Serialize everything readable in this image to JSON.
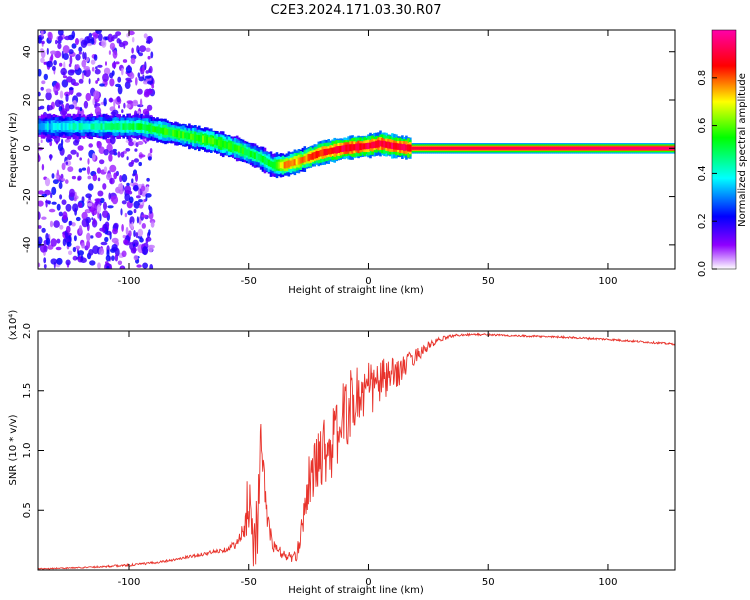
{
  "title": "C2E3.2024.171.03.30.R07",
  "chart_data": [
    {
      "type": "heatmap",
      "xlabel": "Height of straight line (km)",
      "ylabel": "Frequency (Hz)",
      "xlim": [
        -138,
        128
      ],
      "ylim": [
        -50,
        49
      ],
      "x_ticks": [
        -100,
        -50,
        0,
        50,
        100
      ],
      "y_ticks": [
        -40,
        -20,
        0,
        20,
        40
      ],
      "grid": false,
      "colorbar": {
        "label": "Normalized spectral amplitude",
        "range": [
          0,
          1
        ],
        "ticks": [
          0.0,
          0.2,
          0.4,
          0.6,
          0.8
        ],
        "colors": [
          "#ffffff",
          "#8f00ff",
          "#0000ff",
          "#00ffff",
          "#00ff00",
          "#ffff00",
          "#ff0000",
          "#ff00aa"
        ]
      },
      "ridge": {
        "x": [
          -138,
          -125,
          -110,
          -95,
          -85,
          -75,
          -65,
          -55,
          -45,
          -40,
          -35,
          -28,
          -20,
          -10,
          0,
          5,
          10,
          18,
          128
        ],
        "y": [
          9,
          9,
          9,
          9,
          7,
          5,
          3,
          0,
          -4,
          -7,
          -7,
          -5,
          -2,
          0,
          1,
          2,
          1,
          0,
          0
        ],
        "amplitude": [
          0.35,
          0.4,
          0.45,
          0.5,
          0.55,
          0.55,
          0.6,
          0.55,
          0.5,
          0.5,
          0.75,
          0.75,
          0.85,
          0.9,
          0.9,
          0.9,
          0.9,
          0.9,
          0.95
        ]
      },
      "noise_region": {
        "x": [
          -138,
          -90
        ],
        "amplitude": 0.12
      }
    },
    {
      "type": "line",
      "xlabel": "Height of straight line (km)",
      "ylabel": "SNR (10 * v/v)",
      "y_multiplier": "(x10⁴)",
      "xlim": [
        -138,
        128
      ],
      "ylim": [
        0,
        2.0
      ],
      "x_ticks": [
        -100,
        -50,
        0,
        50,
        100
      ],
      "y_ticks": [
        0.5,
        1.0,
        1.5,
        2.0
      ],
      "y_ticklabels": [
        "0.5",
        "1.0",
        "1.5",
        "2.0"
      ],
      "grid": false,
      "series": [
        {
          "color": "#e8332b",
          "x": [
            -138,
            -120,
            -100,
            -90,
            -80,
            -70,
            -60,
            -55,
            -52,
            -50,
            -48,
            -46,
            -45,
            -42,
            -40,
            -35,
            -30,
            -28,
            -25,
            -22,
            -20,
            -15,
            -10,
            -5,
            0,
            5,
            10,
            15,
            20,
            25,
            30,
            35,
            40,
            50,
            60,
            80,
            100,
            128
          ],
          "y": [
            0.01,
            0.02,
            0.04,
            0.06,
            0.09,
            0.13,
            0.17,
            0.22,
            0.3,
            0.65,
            0.25,
            0.45,
            1.1,
            0.4,
            0.2,
            0.12,
            0.1,
            0.35,
            0.75,
            0.85,
            1.0,
            1.05,
            1.3,
            1.45,
            1.5,
            1.58,
            1.62,
            1.7,
            1.8,
            1.87,
            1.93,
            1.96,
            1.97,
            1.97,
            1.96,
            1.95,
            1.93,
            1.89
          ],
          "noise": [
            0.005,
            0.005,
            0.01,
            0.01,
            0.01,
            0.015,
            0.02,
            0.04,
            0.12,
            0.3,
            0.25,
            0.35,
            0.15,
            0.1,
            0.06,
            0.04,
            0.05,
            0.12,
            0.2,
            0.25,
            0.3,
            0.3,
            0.3,
            0.3,
            0.25,
            0.2,
            0.15,
            0.1,
            0.06,
            0.04,
            0.02,
            0.012,
            0.01,
            0.008,
            0.008,
            0.008,
            0.008,
            0.008
          ]
        }
      ]
    }
  ]
}
